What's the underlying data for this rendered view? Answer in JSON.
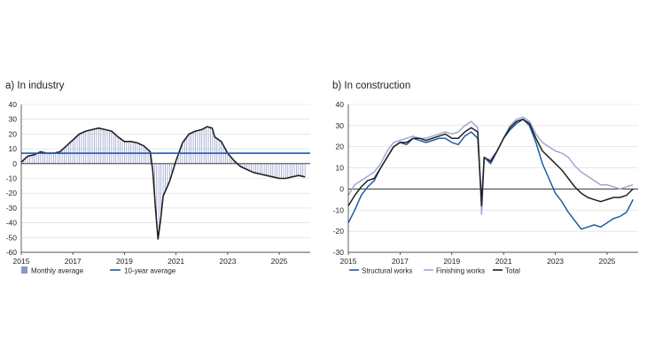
{
  "colors": {
    "monthly_bar": "#8c96c8",
    "ten_year": "#1f5aa6",
    "total": "#231f20",
    "structural": "#1f5aa6",
    "finishing": "#9fa8d6",
    "grid": "#d9d9d9",
    "axis": "#231f20"
  },
  "chart_data": [
    {
      "type": "bar",
      "panel_title": "a) In industry",
      "x_ticks": [
        "2015",
        "2017",
        "2019",
        "2021",
        "2023",
        "2025"
      ],
      "y_ticks": [
        "40",
        "30",
        "20",
        "10",
        "0",
        "-10",
        "-20",
        "-30",
        "-40",
        "-50",
        "-60"
      ],
      "xlim": [
        2015,
        2026.2
      ],
      "ylim": [
        -60,
        40
      ],
      "legend": [
        "Monthly average",
        "10-year average"
      ],
      "series": [
        {
          "name": "Monthly average",
          "type": "bar+line",
          "points": [
            [
              2015.0,
              1
            ],
            [
              2015.25,
              5
            ],
            [
              2015.5,
              6
            ],
            [
              2015.75,
              8
            ],
            [
              2016.0,
              7
            ],
            [
              2016.25,
              7
            ],
            [
              2016.5,
              8
            ],
            [
              2016.75,
              12
            ],
            [
              2017.0,
              16
            ],
            [
              2017.25,
              20
            ],
            [
              2017.5,
              22
            ],
            [
              2017.75,
              23
            ],
            [
              2018.0,
              24
            ],
            [
              2018.25,
              23
            ],
            [
              2018.5,
              22
            ],
            [
              2018.75,
              18
            ],
            [
              2019.0,
              15
            ],
            [
              2019.25,
              15
            ],
            [
              2019.5,
              14
            ],
            [
              2019.75,
              12
            ],
            [
              2020.0,
              8
            ],
            [
              2020.1,
              -5
            ],
            [
              2020.2,
              -30
            ],
            [
              2020.3,
              -51
            ],
            [
              2020.4,
              -38
            ],
            [
              2020.5,
              -22
            ],
            [
              2020.75,
              -12
            ],
            [
              2021.0,
              2
            ],
            [
              2021.25,
              14
            ],
            [
              2021.5,
              20
            ],
            [
              2021.75,
              22
            ],
            [
              2022.0,
              23
            ],
            [
              2022.2,
              25
            ],
            [
              2022.4,
              24
            ],
            [
              2022.5,
              18
            ],
            [
              2022.75,
              15
            ],
            [
              2023.0,
              7
            ],
            [
              2023.25,
              2
            ],
            [
              2023.5,
              -2
            ],
            [
              2023.75,
              -4
            ],
            [
              2024.0,
              -6
            ],
            [
              2024.25,
              -7
            ],
            [
              2024.5,
              -8
            ],
            [
              2024.75,
              -9
            ],
            [
              2025.0,
              -10
            ],
            [
              2025.25,
              -10
            ],
            [
              2025.5,
              -9
            ],
            [
              2025.75,
              -8
            ],
            [
              2026.0,
              -9
            ]
          ]
        },
        {
          "name": "10-year average",
          "type": "hline",
          "value": 7
        }
      ]
    },
    {
      "type": "line",
      "panel_title": "b) In construction",
      "x_ticks": [
        "2015",
        "2017",
        "2019",
        "2021",
        "2023",
        "2025"
      ],
      "y_ticks": [
        "40",
        "30",
        "20",
        "10",
        "0",
        "-10",
        "-20",
        "-30"
      ],
      "xlim": [
        2015,
        2026.2
      ],
      "ylim": [
        -30,
        40
      ],
      "legend": [
        "Structural works",
        "Finishing works",
        "Total"
      ],
      "series": [
        {
          "name": "Structural works",
          "points": [
            [
              2015.0,
              -16
            ],
            [
              2015.25,
              -10
            ],
            [
              2015.5,
              -3
            ],
            [
              2015.75,
              1
            ],
            [
              2016.0,
              4
            ],
            [
              2016.25,
              10
            ],
            [
              2016.5,
              15
            ],
            [
              2016.75,
              20
            ],
            [
              2017.0,
              22
            ],
            [
              2017.25,
              21
            ],
            [
              2017.5,
              24
            ],
            [
              2017.75,
              23
            ],
            [
              2018.0,
              22
            ],
            [
              2018.25,
              23
            ],
            [
              2018.5,
              24
            ],
            [
              2018.75,
              24
            ],
            [
              2019.0,
              22
            ],
            [
              2019.25,
              21
            ],
            [
              2019.5,
              25
            ],
            [
              2019.75,
              27
            ],
            [
              2020.0,
              24
            ],
            [
              2020.15,
              -6
            ],
            [
              2020.25,
              15
            ],
            [
              2020.5,
              12
            ],
            [
              2020.75,
              18
            ],
            [
              2021.0,
              24
            ],
            [
              2021.25,
              28
            ],
            [
              2021.5,
              31
            ],
            [
              2021.75,
              33
            ],
            [
              2022.0,
              30
            ],
            [
              2022.25,
              22
            ],
            [
              2022.5,
              12
            ],
            [
              2022.75,
              5
            ],
            [
              2023.0,
              -2
            ],
            [
              2023.25,
              -6
            ],
            [
              2023.5,
              -11
            ],
            [
              2023.75,
              -15
            ],
            [
              2024.0,
              -19
            ],
            [
              2024.25,
              -18
            ],
            [
              2024.5,
              -17
            ],
            [
              2024.75,
              -18
            ],
            [
              2025.0,
              -16
            ],
            [
              2025.25,
              -14
            ],
            [
              2025.5,
              -13
            ],
            [
              2025.75,
              -11
            ],
            [
              2026.0,
              -5
            ]
          ]
        },
        {
          "name": "Finishing works",
          "points": [
            [
              2015.0,
              -3
            ],
            [
              2015.25,
              2
            ],
            [
              2015.5,
              4
            ],
            [
              2015.75,
              6
            ],
            [
              2016.0,
              8
            ],
            [
              2016.25,
              12
            ],
            [
              2016.5,
              18
            ],
            [
              2016.75,
              22
            ],
            [
              2017.0,
              23
            ],
            [
              2017.25,
              24
            ],
            [
              2017.5,
              25
            ],
            [
              2017.75,
              24
            ],
            [
              2018.0,
              24
            ],
            [
              2018.25,
              25
            ],
            [
              2018.5,
              26
            ],
            [
              2018.75,
              27
            ],
            [
              2019.0,
              26
            ],
            [
              2019.25,
              27
            ],
            [
              2019.5,
              30
            ],
            [
              2019.75,
              32
            ],
            [
              2020.0,
              29
            ],
            [
              2020.15,
              -12
            ],
            [
              2020.25,
              14
            ],
            [
              2020.5,
              14
            ],
            [
              2020.75,
              18
            ],
            [
              2021.0,
              24
            ],
            [
              2021.25,
              30
            ],
            [
              2021.5,
              33
            ],
            [
              2021.75,
              34
            ],
            [
              2022.0,
              32
            ],
            [
              2022.25,
              26
            ],
            [
              2022.5,
              22
            ],
            [
              2022.75,
              20
            ],
            [
              2023.0,
              18
            ],
            [
              2023.25,
              17
            ],
            [
              2023.5,
              15
            ],
            [
              2023.75,
              11
            ],
            [
              2024.0,
              8
            ],
            [
              2024.25,
              6
            ],
            [
              2024.5,
              4
            ],
            [
              2024.75,
              2
            ],
            [
              2025.0,
              2
            ],
            [
              2025.25,
              1
            ],
            [
              2025.5,
              0
            ],
            [
              2025.75,
              1
            ],
            [
              2026.0,
              2
            ]
          ]
        },
        {
          "name": "Total",
          "points": [
            [
              2015.0,
              -8
            ],
            [
              2015.25,
              -3
            ],
            [
              2015.5,
              1
            ],
            [
              2015.75,
              4
            ],
            [
              2016.0,
              5
            ],
            [
              2016.25,
              10
            ],
            [
              2016.5,
              15
            ],
            [
              2016.75,
              20
            ],
            [
              2017.0,
              22
            ],
            [
              2017.25,
              22
            ],
            [
              2017.5,
              24
            ],
            [
              2017.75,
              24
            ],
            [
              2018.0,
              23
            ],
            [
              2018.25,
              24
            ],
            [
              2018.5,
              25
            ],
            [
              2018.75,
              26
            ],
            [
              2019.0,
              24
            ],
            [
              2019.25,
              24
            ],
            [
              2019.5,
              27
            ],
            [
              2019.75,
              29
            ],
            [
              2020.0,
              27
            ],
            [
              2020.15,
              -8
            ],
            [
              2020.25,
              15
            ],
            [
              2020.5,
              13
            ],
            [
              2020.75,
              18
            ],
            [
              2021.0,
              24
            ],
            [
              2021.25,
              29
            ],
            [
              2021.5,
              32
            ],
            [
              2021.75,
              33
            ],
            [
              2022.0,
              31
            ],
            [
              2022.25,
              24
            ],
            [
              2022.5,
              18
            ],
            [
              2022.75,
              15
            ],
            [
              2023.0,
              12
            ],
            [
              2023.25,
              9
            ],
            [
              2023.5,
              5
            ],
            [
              2023.75,
              1
            ],
            [
              2024.0,
              -2
            ],
            [
              2024.25,
              -4
            ],
            [
              2024.5,
              -5
            ],
            [
              2024.75,
              -6
            ],
            [
              2025.0,
              -5
            ],
            [
              2025.25,
              -4
            ],
            [
              2025.5,
              -4
            ],
            [
              2025.75,
              -3
            ],
            [
              2026.0,
              0
            ]
          ]
        }
      ]
    }
  ]
}
